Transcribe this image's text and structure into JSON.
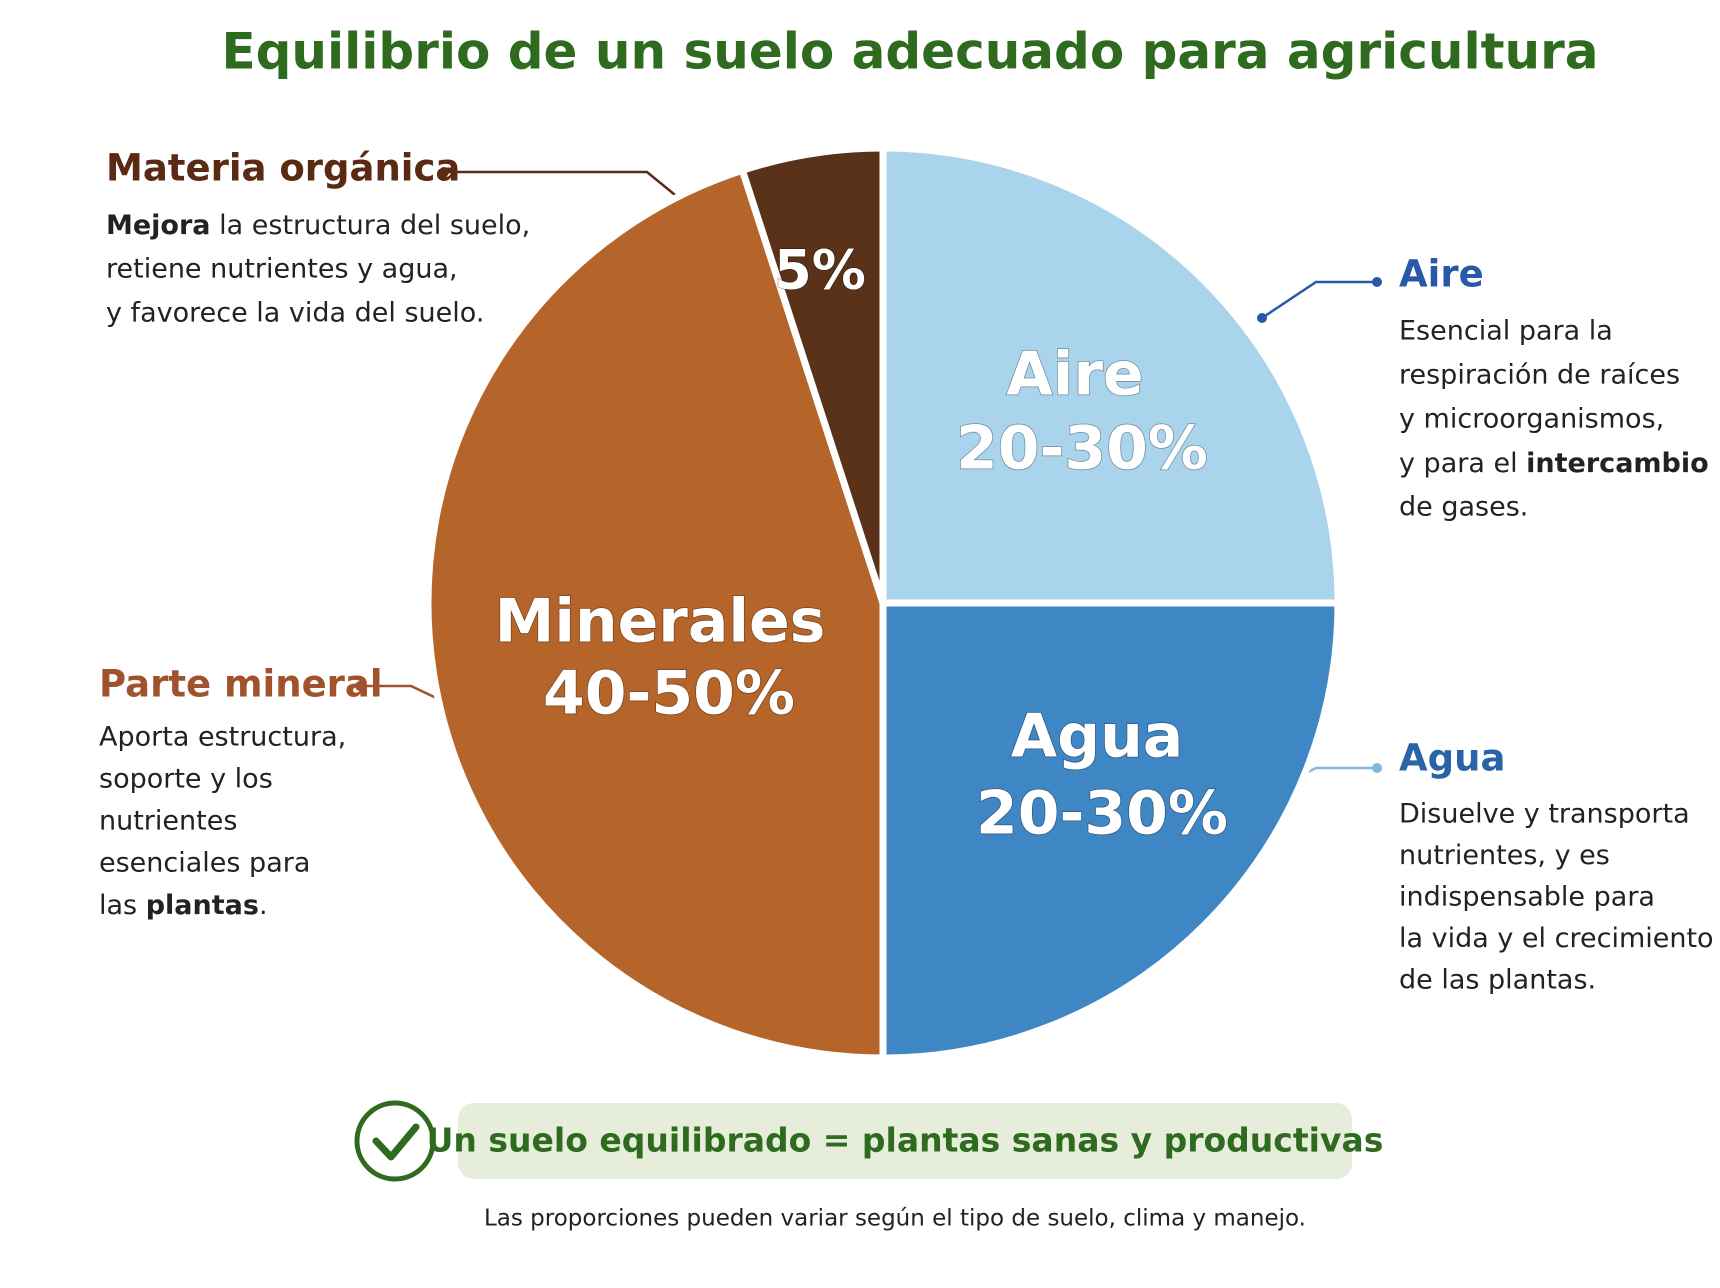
{
  "chart_data": {
    "type": "pie",
    "title": "Equilibrio de un suelo adecuado para agricultura",
    "categories": [
      "Aire",
      "Agua",
      "Parte mineral",
      "Materia orgánica"
    ],
    "slice_labels": [
      "Aire",
      "Agua",
      "Minerales",
      null
    ],
    "values": [
      [
        20,
        30
      ],
      [
        20,
        30
      ],
      [
        40,
        50
      ],
      [
        5
      ]
    ],
    "value_labels": [
      "20-30%",
      "20-30%",
      "40-50%",
      "5%"
    ],
    "colors": [
      "#a9d4ec",
      "#3f86c4",
      "#b5652a",
      "#5a3219"
    ],
    "title_colors": [
      "#2a58a8",
      "#2a64a8",
      "#a0522d",
      "#5a2a14"
    ],
    "descriptions": [
      [
        "Esencial para la",
        "respiración de raíces",
        "y microorganismos,",
        [
          "y para el ",
          {
            "bold": "intercambio"
          }
        ],
        "de gases."
      ],
      [
        "Disuelve y transporta",
        "nutrientes, y es",
        "indispensable para",
        "la vida y el crecimiento",
        "de las plantas."
      ],
      [
        "Aporta estructura,",
        "soporte y los",
        "nutrientes",
        "esenciales para",
        [
          "las ",
          {
            "bold": "plantas"
          },
          "."
        ]
      ],
      [
        [
          {
            "bold": "Mejora"
          },
          " la estructura del suelo,"
        ],
        "retiene nutrientes y agua,",
        "y favorece la vida del suelo."
      ]
    ],
    "banner": "Un suelo equilibrado = plantas sanas y productivas",
    "footnote": "Las proporciones pueden variar según el tipo de suelo, clima y manejo."
  }
}
